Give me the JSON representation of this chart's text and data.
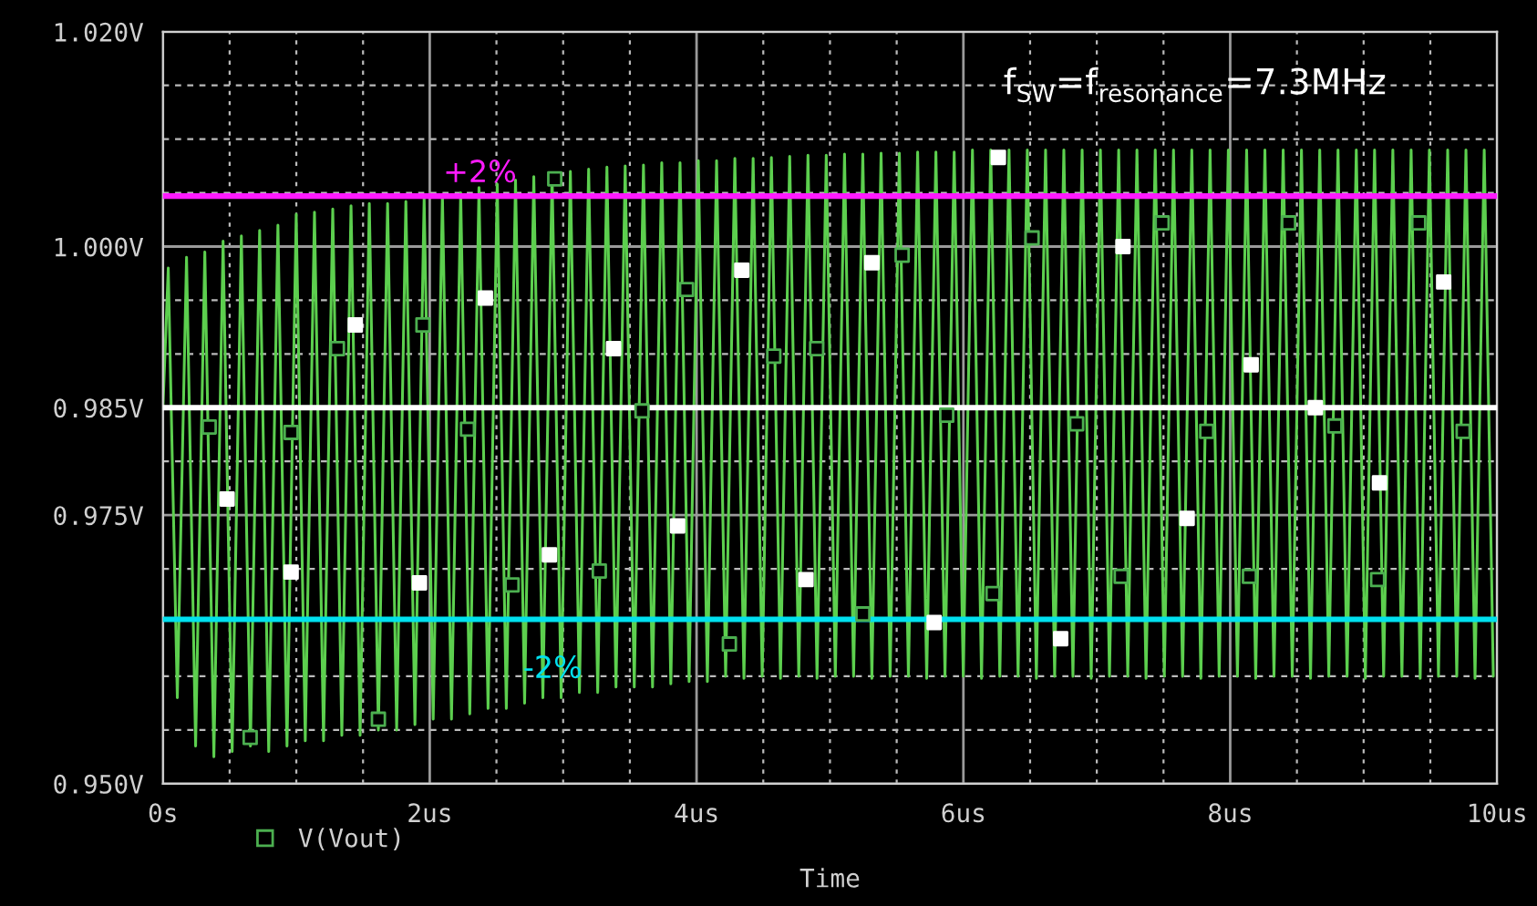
{
  "chart_data": {
    "type": "line",
    "annotations": [
      "f$_{SW}$=f$_{resonance}$=7.3MHz",
      {
        "text": "+2%",
        "x": 2.1,
        "y": 1.0047
      },
      {
        "text": "-2%",
        "x": 2.7,
        "y": 0.9653
      }
    ],
    "xlabel": "Time",
    "xlim": [
      0,
      10
    ],
    "xticks": [
      {
        "value": 0,
        "label": "0s"
      },
      {
        "value": 0.5,
        "label": null
      },
      {
        "value": 1,
        "label": null
      },
      {
        "value": 1.5,
        "label": null
      },
      {
        "value": 2,
        "label": "2us"
      },
      {
        "value": 2.5,
        "label": null
      },
      {
        "value": 3,
        "label": null
      },
      {
        "value": 3.5,
        "label": null
      },
      {
        "value": 4,
        "label": "4us"
      },
      {
        "value": 4.5,
        "label": null
      },
      {
        "value": 5,
        "label": null
      },
      {
        "value": 5.5,
        "label": null
      },
      {
        "value": 6,
        "label": "6us"
      },
      {
        "value": 6.5,
        "label": null
      },
      {
        "value": 7,
        "label": null
      },
      {
        "value": 7.5,
        "label": null
      },
      {
        "value": 8,
        "label": "8us"
      },
      {
        "value": 8.5,
        "label": null
      },
      {
        "value": 9,
        "label": null
      },
      {
        "value": 9.5,
        "label": null
      },
      {
        "value": 10,
        "label": "10us"
      }
    ],
    "ylim": [
      0.95,
      1.02
    ],
    "yticks": [
      {
        "value": 0.95,
        "label": "0.950V"
      },
      {
        "value": 0.955,
        "label": null
      },
      {
        "value": 0.96,
        "label": null
      },
      {
        "value": 0.97,
        "label": null
      },
      {
        "value": 0.975,
        "label": "0.975V"
      },
      {
        "value": 0.98,
        "label": null
      },
      {
        "value": 0.985,
        "label": "0.985V"
      },
      {
        "value": 0.99,
        "label": null
      },
      {
        "value": 0.995,
        "label": null
      },
      {
        "value": 1.0,
        "label": "1.000V"
      },
      {
        "value": 1.005,
        "label": null
      },
      {
        "value": 1.01,
        "label": null
      },
      {
        "value": 1.015,
        "label": null
      },
      {
        "value": 1.02,
        "label": "1.020V"
      }
    ],
    "grid": true,
    "legend": "bottom left",
    "ref_lines": [
      {
        "axis": "y",
        "value": 1.0047,
        "color": "#ff1aff"
      },
      {
        "axis": "y",
        "value": 0.985,
        "color": "#ffffff"
      },
      {
        "axis": "y",
        "value": 0.9653,
        "color": "#00e0ee"
      }
    ],
    "series": [
      {
        "color": "#5ccf4e",
        "x": [
          0,
          0.04,
          0.108,
          0.177,
          0.245,
          0.314,
          0.382,
          0.451,
          0.519,
          0.588,
          0.656,
          0.725,
          0.793,
          0.862,
          0.93,
          0.999,
          1.067,
          1.136,
          1.204,
          1.273,
          1.341,
          1.41,
          1.478,
          1.547,
          1.615,
          1.684,
          1.752,
          1.821,
          1.889,
          1.958,
          2.026,
          2.095,
          2.163,
          2.232,
          2.3,
          2.369,
          2.437,
          2.506,
          2.574,
          2.643,
          2.711,
          2.78,
          2.848,
          2.917,
          2.985,
          3.054,
          3.122,
          3.191,
          3.259,
          3.328,
          3.396,
          3.465,
          3.533,
          3.602,
          3.67,
          3.739,
          3.807,
          3.876,
          3.944,
          4.013,
          4.081,
          4.15,
          4.218,
          4.287,
          4.355,
          4.424,
          4.492,
          4.561,
          4.629,
          4.698,
          4.766,
          4.835,
          4.903,
          4.972,
          5.04,
          5.109,
          5.177,
          5.246,
          5.314,
          5.383,
          5.451,
          5.52,
          5.588,
          5.657,
          5.725,
          5.794,
          5.862,
          5.931,
          5.999,
          6.068,
          6.136,
          6.205,
          6.273,
          6.342,
          6.41,
          6.479,
          6.547,
          6.616,
          6.684,
          6.753,
          6.821,
          6.89,
          6.958,
          7.027,
          7.095,
          7.164,
          7.232,
          7.301,
          7.369,
          7.438,
          7.506,
          7.575,
          7.643,
          7.712,
          7.78,
          7.849,
          7.917,
          7.986,
          8.054,
          8.123,
          8.191,
          8.26,
          8.328,
          8.397,
          8.465,
          8.534,
          8.602,
          8.671,
          8.739,
          8.808,
          8.876,
          8.945,
          9.013,
          9.082,
          9.15,
          9.219,
          9.287,
          9.356,
          9.424,
          9.493,
          9.561,
          9.63,
          9.698,
          9.767,
          9.835,
          9.904,
          9.972
        ],
        "values": [
          0.985,
          0.998,
          0.958,
          0.999,
          0.9535,
          0.9995,
          0.9525,
          1.0005,
          0.953,
          1.001,
          0.9535,
          1.0015,
          0.953,
          1.002,
          0.9535,
          1.003,
          0.954,
          1.0032,
          0.954,
          1.0035,
          0.9545,
          1.0038,
          0.9545,
          1.004,
          0.955,
          1.004,
          0.955,
          1.0042,
          0.9555,
          1.0045,
          0.956,
          1.0048,
          0.956,
          1.005,
          0.9565,
          1.0055,
          0.957,
          1.0058,
          0.957,
          1.0062,
          0.9575,
          1.0065,
          0.958,
          1.0068,
          0.958,
          1.007,
          0.9585,
          1.0072,
          0.9585,
          1.0074,
          0.959,
          1.0075,
          0.959,
          1.0076,
          0.959,
          1.0078,
          0.9593,
          1.0078,
          0.9595,
          1.008,
          0.9595,
          1.008,
          0.96,
          1.0082,
          0.9598,
          1.0082,
          0.96,
          1.0083,
          0.9598,
          1.0084,
          0.96,
          1.0085,
          0.9598,
          1.0085,
          0.96,
          1.0086,
          0.96,
          1.0086,
          0.9598,
          1.0087,
          0.96,
          1.0087,
          0.96,
          1.0088,
          0.9598,
          1.0088,
          0.96,
          1.0088,
          0.96,
          1.009,
          0.9598,
          1.009,
          0.96,
          1.009,
          0.96,
          1.009,
          0.9598,
          1.009,
          0.96,
          1.009,
          0.96,
          1.009,
          0.9598,
          1.009,
          0.96,
          1.009,
          0.96,
          1.009,
          0.9598,
          1.009,
          0.96,
          1.009,
          0.96,
          1.009,
          0.9598,
          1.009,
          0.96,
          1.009,
          0.96,
          1.009,
          0.9598,
          1.009,
          0.96,
          1.009,
          0.96,
          1.009,
          0.9598,
          1.009,
          0.96,
          1.009,
          0.96,
          1.009,
          0.9598,
          1.009,
          0.96,
          1.009,
          0.96,
          1.009,
          0.9598,
          1.009,
          0.96,
          1.009,
          0.96,
          1.009,
          0.9598,
          1.009,
          0.96
        ]
      },
      {
        "name": "V(Vout)",
        "type": "scatter",
        "color": "#4caf50",
        "marker": "square",
        "x": [
          0.347,
          0.654,
          0.961,
          1.308,
          1.615,
          1.949,
          2.283,
          2.617,
          2.937,
          3.271,
          3.591,
          3.925,
          4.246,
          4.579,
          4.9,
          5.247,
          5.541,
          5.875,
          6.222,
          6.515,
          6.849,
          7.183,
          7.49,
          7.824,
          8.144,
          8.438,
          8.785,
          9.105,
          9.413,
          9.746
        ],
        "values": [
          0.9832,
          0.9543,
          0.9827,
          0.9905,
          0.956,
          0.9927,
          0.983,
          0.9685,
          1.0063,
          0.9698,
          0.9847,
          0.996,
          0.963,
          0.9898,
          0.9905,
          0.9658,
          0.9992,
          0.9843,
          0.9677,
          1.0008,
          0.9835,
          0.9693,
          1.0022,
          0.9828,
          0.9693,
          1.0022,
          0.9833,
          0.969,
          1.0022,
          0.9828
        ]
      },
      {
        "type": "scatter",
        "color": "#ffffff",
        "marker": "square",
        "x": [
          0.481,
          0.961,
          1.442,
          1.923,
          2.417,
          2.897,
          3.378,
          3.858,
          4.339,
          4.82,
          5.314,
          5.781,
          6.262,
          6.729,
          7.196,
          7.677,
          8.157,
          8.638,
          9.119,
          9.6
        ],
        "values": [
          0.9765,
          0.9697,
          0.9927,
          0.9687,
          0.9952,
          0.9713,
          0.9905,
          0.974,
          0.9978,
          0.969,
          0.9985,
          0.965,
          1.0083,
          0.9635,
          1.0,
          0.9747,
          0.989,
          0.985,
          0.978,
          0.9967
        ]
      }
    ]
  }
}
